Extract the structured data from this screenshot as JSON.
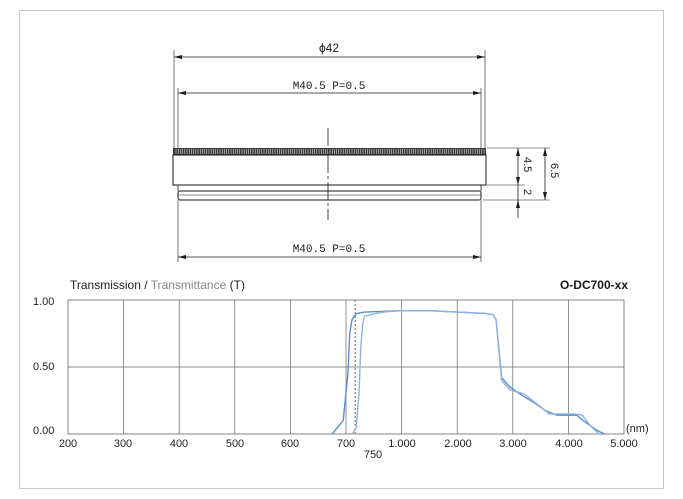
{
  "drawing": {
    "outer_diameter": "ϕ42",
    "thread_top": "M40.5 P=0.5",
    "thread_bottom": "M40.5 P=0.5",
    "height_total": "6.5",
    "height_upper": "4.5",
    "height_lower": "2"
  },
  "chart_header": {
    "title_part1": "Transmission / ",
    "title_part2": "Transmittance",
    "title_part3": " (T)",
    "product_code": "O-DC700-xx"
  },
  "colors": {
    "curve_primary": "#5b8fcf",
    "curve_secondary": "#8fb3e0",
    "grid": "#666666",
    "marker_750": "#999999"
  },
  "chart_data": {
    "type": "line",
    "x_scale": "piecewise-linear",
    "x_ticks": [
      "200",
      "300",
      "400",
      "500",
      "600",
      "700",
      "1.000",
      "2.000",
      "3.000",
      "4.000",
      "5.000"
    ],
    "x_extra_label": "750",
    "x_unit": "(nm)",
    "y_ticks": [
      "0.00",
      "0.50",
      "1.00"
    ],
    "ylim": [
      0,
      1
    ],
    "grid": true,
    "series": [
      {
        "points": [
          [
            675,
            0.0
          ],
          [
            695,
            0.1
          ],
          [
            710,
            0.45
          ],
          [
            720,
            0.75
          ],
          [
            732,
            0.85
          ],
          [
            745,
            0.88
          ],
          [
            760,
            0.9
          ],
          [
            800,
            0.91
          ],
          [
            1000,
            0.92
          ],
          [
            1500,
            0.92
          ],
          [
            2000,
            0.91
          ],
          [
            2500,
            0.9
          ],
          [
            2650,
            0.89
          ],
          [
            2700,
            0.85
          ],
          [
            2800,
            0.42
          ],
          [
            2950,
            0.35
          ],
          [
            3200,
            0.28
          ],
          [
            3400,
            0.23
          ],
          [
            3600,
            0.17
          ],
          [
            3800,
            0.14
          ],
          [
            4000,
            0.14
          ],
          [
            4150,
            0.14
          ],
          [
            4300,
            0.09
          ],
          [
            4500,
            0.03
          ],
          [
            4650,
            0.0
          ]
        ]
      },
      {
        "points": [
          [
            735,
            0.0
          ],
          [
            755,
            0.05
          ],
          [
            770,
            0.3
          ],
          [
            780,
            0.65
          ],
          [
            790,
            0.82
          ],
          [
            800,
            0.88
          ],
          [
            900,
            0.91
          ],
          [
            1000,
            0.92
          ],
          [
            1500,
            0.92
          ],
          [
            2000,
            0.91
          ],
          [
            2500,
            0.9
          ],
          [
            2650,
            0.89
          ],
          [
            2700,
            0.85
          ],
          [
            2800,
            0.4
          ],
          [
            2950,
            0.33
          ],
          [
            3200,
            0.3
          ],
          [
            3450,
            0.22
          ],
          [
            3650,
            0.15
          ],
          [
            3850,
            0.15
          ],
          [
            4000,
            0.15
          ],
          [
            4100,
            0.15
          ],
          [
            4250,
            0.14
          ],
          [
            4400,
            0.06
          ],
          [
            4550,
            0.0
          ]
        ]
      }
    ]
  }
}
